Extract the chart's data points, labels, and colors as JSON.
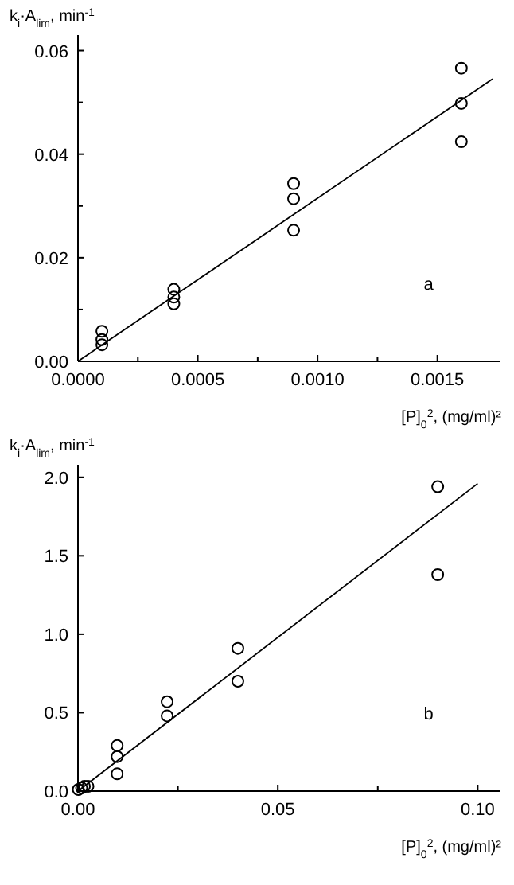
{
  "chart_data": [
    {
      "type": "scatter",
      "xlabel": "[P]$_{0}$$^{2}$, (mg/ml)²",
      "ylabel": "k$_{i}$·A$_{lim}$, min$^{-1}$",
      "annotations": [
        "a"
      ],
      "xlim": [
        0,
        0.00176
      ],
      "ylim": [
        0,
        0.063
      ],
      "xticks": [
        {
          "value": 0,
          "label": "0.0000"
        },
        {
          "value": 0.00025,
          "label": null
        },
        {
          "value": 0.0005,
          "label": "0.0005"
        },
        {
          "value": 0.00075,
          "label": null
        },
        {
          "value": 0.001,
          "label": "0.0010"
        },
        {
          "value": 0.00125,
          "label": null
        },
        {
          "value": 0.0015,
          "label": "0.0015"
        }
      ],
      "yticks": [
        {
          "value": 0,
          "label": "0.00"
        },
        {
          "value": 0.01,
          "label": null
        },
        {
          "value": 0.02,
          "label": "0.02"
        },
        {
          "value": 0.03,
          "label": null
        },
        {
          "value": 0.04,
          "label": "0.04"
        },
        {
          "value": 0.05,
          "label": null
        },
        {
          "value": 0.06,
          "label": "0.06"
        }
      ],
      "grid": false,
      "marker": "circle",
      "series": [
        {
          "color": "#000000",
          "x": [
            0.0001,
            0.0001,
            0.0001,
            0.0004,
            0.0004,
            0.0004,
            0.0009,
            0.0009,
            0.0009,
            0.0016,
            0.0016,
            0.0016
          ],
          "values": [
            0.0058,
            0.0042,
            0.0032,
            0.0139,
            0.0124,
            0.0111,
            0.0343,
            0.0314,
            0.0253,
            0.0566,
            0.0498,
            0.0424
          ]
        },
        {
          "type": "line",
          "color": "#000000",
          "marker": "none",
          "line_style": "solid",
          "x": [
            0,
            0.00173
          ],
          "values": [
            0,
            0.0545
          ]
        }
      ]
    },
    {
      "type": "scatter",
      "xlabel": "[P]$_{0}$$^{2}$, (mg/ml)²",
      "ylabel": "k$_{i}$·A$_{lim}$, min$^{-1}$",
      "annotations": [
        "b"
      ],
      "xlim": [
        0,
        0.1055
      ],
      "ylim": [
        0,
        2.08
      ],
      "xticks": [
        {
          "value": 0,
          "label": "0.00"
        },
        {
          "value": 0.025,
          "label": null
        },
        {
          "value": 0.05,
          "label": "0.05"
        },
        {
          "value": 0.075,
          "label": null
        },
        {
          "value": 0.1,
          "label": "0.10"
        }
      ],
      "yticks": [
        {
          "value": 0,
          "label": "0.0"
        },
        {
          "value": 0.5,
          "label": "0.5"
        },
        {
          "value": 1,
          "label": "1.0"
        },
        {
          "value": 1.5,
          "label": "1.5"
        },
        {
          "value": 2,
          "label": "2.0"
        }
      ],
      "grid": false,
      "marker": "circle",
      "series": [
        {
          "color": "#000000",
          "x": [
            0.0001,
            0.0009,
            0.0016,
            0.0025,
            0.0098,
            0.0098,
            0.0098,
            0.0223,
            0.0223,
            0.04,
            0.04,
            0.09,
            0.09
          ],
          "values": [
            0.01,
            0.02,
            0.03,
            0.03,
            0.29,
            0.22,
            0.11,
            0.57,
            0.48,
            0.91,
            0.7,
            1.94,
            1.38
          ]
        },
        {
          "type": "line",
          "color": "#000000",
          "marker": "none",
          "line_style": "solid",
          "x": [
            0,
            0.1
          ],
          "values": [
            0,
            1.96
          ]
        }
      ]
    }
  ]
}
